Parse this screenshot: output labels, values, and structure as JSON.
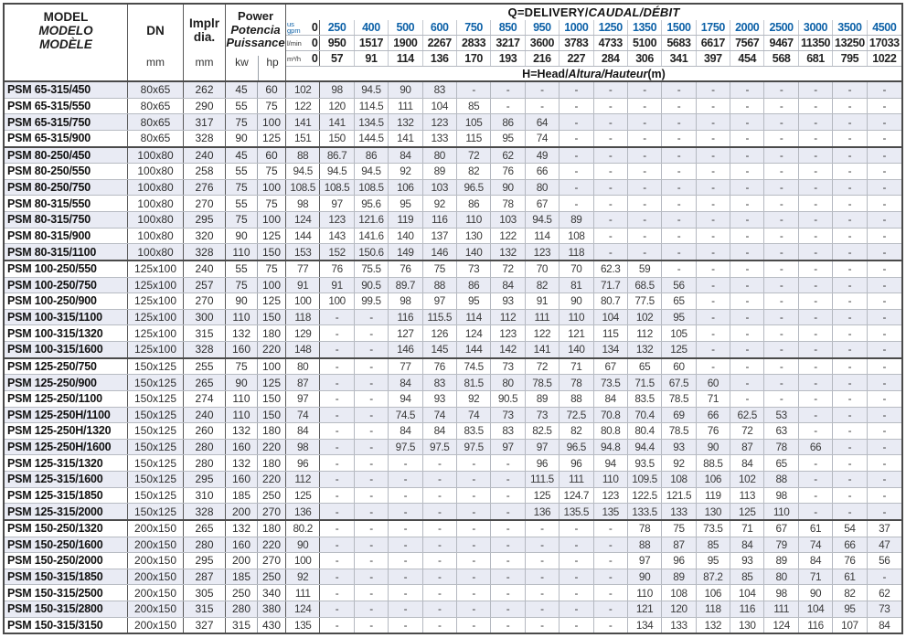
{
  "table": {
    "header": {
      "model": {
        "line1": "MODEL",
        "line2": "MODELO",
        "line3": "MODÈLE"
      },
      "dn": {
        "label": "DN",
        "unit": "mm"
      },
      "impeller": {
        "line1": "Implr",
        "line2": "dia.",
        "unit": "mm"
      },
      "power": {
        "line1": "Power",
        "line2": "Potencia",
        "line3": "Puissance",
        "unit_kw": "kw",
        "unit_hp": "hp"
      },
      "q_title_plain": "Q=DELIVERY/",
      "q_title_italic": "CAUDAL/DÉBIT",
      "h_title_plain": "H=Head/",
      "h_title_italic": "Altura/Hauteur",
      "h_title_unit": "(m)",
      "flow_rows": [
        {
          "id": "us-gpm",
          "label_lines": [
            "us",
            "gpm"
          ],
          "blue": true,
          "values": [
            "0",
            "250",
            "400",
            "500",
            "600",
            "750",
            "850",
            "950",
            "1000",
            "1250",
            "1350",
            "1500",
            "1750",
            "2000",
            "2500",
            "3000",
            "3500",
            "4500"
          ]
        },
        {
          "id": "l-min",
          "label_lines": [
            "l/min"
          ],
          "blue": false,
          "values": [
            "0",
            "950",
            "1517",
            "1900",
            "2267",
            "2833",
            "3217",
            "3600",
            "3783",
            "4733",
            "5100",
            "5683",
            "6617",
            "7567",
            "9467",
            "11350",
            "13250",
            "17033"
          ]
        },
        {
          "id": "m3-h",
          "label_lines": [
            "m³/h"
          ],
          "blue": false,
          "values": [
            "0",
            "57",
            "91",
            "114",
            "136",
            "170",
            "193",
            "216",
            "227",
            "284",
            "306",
            "341",
            "397",
            "454",
            "568",
            "681",
            "795",
            "1022"
          ]
        }
      ]
    },
    "rows": [
      {
        "model": "PSM 65-315/450",
        "dn": "80x65",
        "dia": "262",
        "kw": "45",
        "hp": "60",
        "heads": [
          "102",
          "98",
          "94.5",
          "90",
          "83",
          "-",
          "-",
          "-",
          "-",
          "-",
          "-",
          "-",
          "-",
          "-",
          "-",
          "-",
          "-",
          "-"
        ]
      },
      {
        "model": "PSM 65-315/550",
        "dn": "80x65",
        "dia": "290",
        "kw": "55",
        "hp": "75",
        "heads": [
          "122",
          "120",
          "114.5",
          "111",
          "104",
          "85",
          "-",
          "-",
          "-",
          "-",
          "-",
          "-",
          "-",
          "-",
          "-",
          "-",
          "-",
          "-"
        ]
      },
      {
        "model": "PSM 65-315/750",
        "dn": "80x65",
        "dia": "317",
        "kw": "75",
        "hp": "100",
        "heads": [
          "141",
          "141",
          "134.5",
          "132",
          "123",
          "105",
          "86",
          "64",
          "-",
          "-",
          "-",
          "-",
          "-",
          "-",
          "-",
          "-",
          "-",
          "-"
        ]
      },
      {
        "model": "PSM 65-315/900",
        "dn": "80x65",
        "dia": "328",
        "kw": "90",
        "hp": "125",
        "heads": [
          "151",
          "150",
          "144.5",
          "141",
          "133",
          "115",
          "95",
          "74",
          "-",
          "-",
          "-",
          "-",
          "-",
          "-",
          "-",
          "-",
          "-",
          "-"
        ],
        "group_end": true
      },
      {
        "model": "PSM 80-250/450",
        "dn": "100x80",
        "dia": "240",
        "kw": "45",
        "hp": "60",
        "heads": [
          "88",
          "86.7",
          "86",
          "84",
          "80",
          "72",
          "62",
          "49",
          "-",
          "-",
          "-",
          "-",
          "-",
          "-",
          "-",
          "-",
          "-",
          "-"
        ]
      },
      {
        "model": "PSM 80-250/550",
        "dn": "100x80",
        "dia": "258",
        "kw": "55",
        "hp": "75",
        "heads": [
          "94.5",
          "94.5",
          "94.5",
          "92",
          "89",
          "82",
          "76",
          "66",
          "-",
          "-",
          "-",
          "-",
          "-",
          "-",
          "-",
          "-",
          "-",
          "-"
        ]
      },
      {
        "model": "PSM 80-250/750",
        "dn": "100x80",
        "dia": "276",
        "kw": "75",
        "hp": "100",
        "heads": [
          "108.5",
          "108.5",
          "108.5",
          "106",
          "103",
          "96.5",
          "90",
          "80",
          "-",
          "-",
          "-",
          "-",
          "-",
          "-",
          "-",
          "-",
          "-",
          "-"
        ]
      },
      {
        "model": "PSM 80-315/550",
        "dn": "100x80",
        "dia": "270",
        "kw": "55",
        "hp": "75",
        "heads": [
          "98",
          "97",
          "95.6",
          "95",
          "92",
          "86",
          "78",
          "67",
          "-",
          "-",
          "-",
          "-",
          "-",
          "-",
          "-",
          "-",
          "-",
          "-"
        ]
      },
      {
        "model": "PSM 80-315/750",
        "dn": "100x80",
        "dia": "295",
        "kw": "75",
        "hp": "100",
        "heads": [
          "124",
          "123",
          "121.6",
          "119",
          "116",
          "110",
          "103",
          "94.5",
          "89",
          "-",
          "-",
          "-",
          "-",
          "-",
          "-",
          "-",
          "-",
          "-"
        ]
      },
      {
        "model": "PSM 80-315/900",
        "dn": "100x80",
        "dia": "320",
        "kw": "90",
        "hp": "125",
        "heads": [
          "144",
          "143",
          "141.6",
          "140",
          "137",
          "130",
          "122",
          "114",
          "108",
          "-",
          "-",
          "-",
          "-",
          "-",
          "-",
          "-",
          "-",
          "-"
        ]
      },
      {
        "model": "PSM 80-315/1100",
        "dn": "100x80",
        "dia": "328",
        "kw": "110",
        "hp": "150",
        "heads": [
          "153",
          "152",
          "150.6",
          "149",
          "146",
          "140",
          "132",
          "123",
          "118",
          "-",
          "-",
          "-",
          "-",
          "-",
          "-",
          "-",
          "-",
          "-"
        ],
        "group_end": true
      },
      {
        "model": "PSM 100-250/550",
        "dn": "125x100",
        "dia": "240",
        "kw": "55",
        "hp": "75",
        "heads": [
          "77",
          "76",
          "75.5",
          "76",
          "75",
          "73",
          "72",
          "70",
          "70",
          "62.3",
          "59",
          "-",
          "-",
          "-",
          "-",
          "-",
          "-",
          "-"
        ]
      },
      {
        "model": "PSM 100-250/750",
        "dn": "125x100",
        "dia": "257",
        "kw": "75",
        "hp": "100",
        "heads": [
          "91",
          "91",
          "90.5",
          "89.7",
          "88",
          "86",
          "84",
          "82",
          "81",
          "71.7",
          "68.5",
          "56",
          "-",
          "-",
          "-",
          "-",
          "-",
          "-"
        ]
      },
      {
        "model": "PSM 100-250/900",
        "dn": "125x100",
        "dia": "270",
        "kw": "90",
        "hp": "125",
        "heads": [
          "100",
          "100",
          "99.5",
          "98",
          "97",
          "95",
          "93",
          "91",
          "90",
          "80.7",
          "77.5",
          "65",
          "-",
          "-",
          "-",
          "-",
          "-",
          "-"
        ]
      },
      {
        "model": "PSM 100-315/1100",
        "dn": "125x100",
        "dia": "300",
        "kw": "110",
        "hp": "150",
        "heads": [
          "118",
          "-",
          "-",
          "116",
          "115.5",
          "114",
          "112",
          "111",
          "110",
          "104",
          "102",
          "95",
          "-",
          "-",
          "-",
          "-",
          "-",
          "-"
        ]
      },
      {
        "model": "PSM 100-315/1320",
        "dn": "125x100",
        "dia": "315",
        "kw": "132",
        "hp": "180",
        "heads": [
          "129",
          "-",
          "-",
          "127",
          "126",
          "124",
          "123",
          "122",
          "121",
          "115",
          "112",
          "105",
          "-",
          "-",
          "-",
          "-",
          "-",
          "-"
        ]
      },
      {
        "model": "PSM 100-315/1600",
        "dn": "125x100",
        "dia": "328",
        "kw": "160",
        "hp": "220",
        "heads": [
          "148",
          "-",
          "-",
          "146",
          "145",
          "144",
          "142",
          "141",
          "140",
          "134",
          "132",
          "125",
          "-",
          "-",
          "-",
          "-",
          "-",
          "-"
        ],
        "group_end": true
      },
      {
        "model": "PSM 125-250/750",
        "dn": "150x125",
        "dia": "255",
        "kw": "75",
        "hp": "100",
        "heads": [
          "80",
          "-",
          "-",
          "77",
          "76",
          "74.5",
          "73",
          "72",
          "71",
          "67",
          "65",
          "60",
          "-",
          "-",
          "-",
          "-",
          "-",
          "-"
        ]
      },
      {
        "model": "PSM 125-250/900",
        "dn": "150x125",
        "dia": "265",
        "kw": "90",
        "hp": "125",
        "heads": [
          "87",
          "-",
          "-",
          "84",
          "83",
          "81.5",
          "80",
          "78.5",
          "78",
          "73.5",
          "71.5",
          "67.5",
          "60",
          "-",
          "-",
          "-",
          "-",
          "-"
        ]
      },
      {
        "model": "PSM 125-250/1100",
        "dn": "150x125",
        "dia": "274",
        "kw": "110",
        "hp": "150",
        "heads": [
          "97",
          "-",
          "-",
          "94",
          "93",
          "92",
          "90.5",
          "89",
          "88",
          "84",
          "83.5",
          "78.5",
          "71",
          "-",
          "-",
          "-",
          "-",
          "-"
        ]
      },
      {
        "model": "PSM 125-250H/1100",
        "dn": "150x125",
        "dia": "240",
        "kw": "110",
        "hp": "150",
        "heads": [
          "74",
          "-",
          "-",
          "74.5",
          "74",
          "74",
          "73",
          "73",
          "72.5",
          "70.8",
          "70.4",
          "69",
          "66",
          "62.5",
          "53",
          "-",
          "-",
          "-"
        ]
      },
      {
        "model": "PSM 125-250H/1320",
        "dn": "150x125",
        "dia": "260",
        "kw": "132",
        "hp": "180",
        "heads": [
          "84",
          "-",
          "-",
          "84",
          "84",
          "83.5",
          "83",
          "82.5",
          "82",
          "80.8",
          "80.4",
          "78.5",
          "76",
          "72",
          "63",
          "-",
          "-",
          "-"
        ]
      },
      {
        "model": "PSM 125-250H/1600",
        "dn": "150x125",
        "dia": "280",
        "kw": "160",
        "hp": "220",
        "heads": [
          "98",
          "-",
          "-",
          "97.5",
          "97.5",
          "97.5",
          "97",
          "97",
          "96.5",
          "94.8",
          "94.4",
          "93",
          "90",
          "87",
          "78",
          "66",
          "-",
          "-"
        ]
      },
      {
        "model": "PSM 125-315/1320",
        "dn": "150x125",
        "dia": "280",
        "kw": "132",
        "hp": "180",
        "heads": [
          "96",
          "-",
          "-",
          "-",
          "-",
          "-",
          "-",
          "96",
          "96",
          "94",
          "93.5",
          "92",
          "88.5",
          "84",
          "65",
          "-",
          "-",
          "-"
        ]
      },
      {
        "model": "PSM 125-315/1600",
        "dn": "150x125",
        "dia": "295",
        "kw": "160",
        "hp": "220",
        "heads": [
          "112",
          "-",
          "-",
          "-",
          "-",
          "-",
          "-",
          "111.5",
          "111",
          "110",
          "109.5",
          "108",
          "106",
          "102",
          "88",
          "-",
          "-",
          "-"
        ]
      },
      {
        "model": "PSM 125-315/1850",
        "dn": "150x125",
        "dia": "310",
        "kw": "185",
        "hp": "250",
        "heads": [
          "125",
          "-",
          "-",
          "-",
          "-",
          "-",
          "-",
          "125",
          "124.7",
          "123",
          "122.5",
          "121.5",
          "119",
          "113",
          "98",
          "-",
          "-",
          "-"
        ]
      },
      {
        "model": "PSM 125-315/2000",
        "dn": "150x125",
        "dia": "328",
        "kw": "200",
        "hp": "270",
        "heads": [
          "136",
          "-",
          "-",
          "-",
          "-",
          "-",
          "-",
          "136",
          "135.5",
          "135",
          "133.5",
          "133",
          "130",
          "125",
          "110",
          "-",
          "-",
          "-"
        ],
        "group_end": true
      },
      {
        "model": "PSM 150-250/1320",
        "dn": "200x150",
        "dia": "265",
        "kw": "132",
        "hp": "180",
        "heads": [
          "80.2",
          "-",
          "-",
          "-",
          "-",
          "-",
          "-",
          "-",
          "-",
          "-",
          "78",
          "75",
          "73.5",
          "71",
          "67",
          "61",
          "54",
          "37"
        ]
      },
      {
        "model": "PSM 150-250/1600",
        "dn": "200x150",
        "dia": "280",
        "kw": "160",
        "hp": "220",
        "heads": [
          "90",
          "-",
          "-",
          "-",
          "-",
          "-",
          "-",
          "-",
          "-",
          "-",
          "88",
          "87",
          "85",
          "84",
          "79",
          "74",
          "66",
          "47"
        ]
      },
      {
        "model": "PSM 150-250/2000",
        "dn": "200x150",
        "dia": "295",
        "kw": "200",
        "hp": "270",
        "heads": [
          "100",
          "-",
          "-",
          "-",
          "-",
          "-",
          "-",
          "-",
          "-",
          "-",
          "97",
          "96",
          "95",
          "93",
          "89",
          "84",
          "76",
          "56"
        ]
      },
      {
        "model": "PSM 150-315/1850",
        "dn": "200x150",
        "dia": "287",
        "kw": "185",
        "hp": "250",
        "heads": [
          "92",
          "-",
          "-",
          "-",
          "-",
          "-",
          "-",
          "-",
          "-",
          "-",
          "90",
          "89",
          "87.2",
          "85",
          "80",
          "71",
          "61",
          "-"
        ]
      },
      {
        "model": "PSM 150-315/2500",
        "dn": "200x150",
        "dia": "305",
        "kw": "250",
        "hp": "340",
        "heads": [
          "111",
          "-",
          "-",
          "-",
          "-",
          "-",
          "-",
          "-",
          "-",
          "-",
          "110",
          "108",
          "106",
          "104",
          "98",
          "90",
          "82",
          "62"
        ]
      },
      {
        "model": "PSM 150-315/2800",
        "dn": "200x150",
        "dia": "315",
        "kw": "280",
        "hp": "380",
        "heads": [
          "124",
          "-",
          "-",
          "-",
          "-",
          "-",
          "-",
          "-",
          "-",
          "-",
          "121",
          "120",
          "118",
          "116",
          "111",
          "104",
          "95",
          "73"
        ]
      },
      {
        "model": "PSM 150-315/3150",
        "dn": "200x150",
        "dia": "327",
        "kw": "315",
        "hp": "430",
        "heads": [
          "135",
          "-",
          "-",
          "-",
          "-",
          "-",
          "-",
          "-",
          "-",
          "-",
          "134",
          "133",
          "132",
          "130",
          "124",
          "116",
          "107",
          "84"
        ]
      }
    ]
  },
  "colors": {
    "accent_blue": "#0e62a8",
    "row_tint": "#e9ebf4",
    "heavy_border": "#4a4a4a"
  }
}
